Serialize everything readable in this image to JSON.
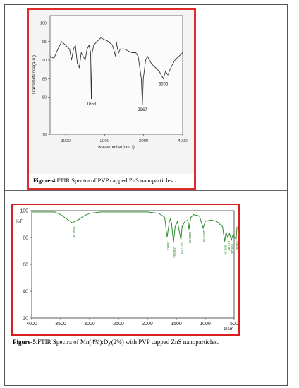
{
  "figure4": {
    "caption_label": "Figure-4",
    "caption_text": ".FTIR Spectra of PVP capped ZnS nanoparticles.",
    "chart_data": {
      "type": "line",
      "xlabel": "wavenumber(cm⁻¹)",
      "ylabel": "Transmittance(a.u.)",
      "xlim": [
        600,
        4000
      ],
      "ylim": [
        70,
        102
      ],
      "x_ticks": [
        "1000",
        "2000",
        "3000",
        "4000"
      ],
      "y_ticks": [
        "70",
        "80",
        "85",
        "90",
        "95",
        "100"
      ],
      "annotations": [
        {
          "label": "1658",
          "x": 1658,
          "y": 79.5
        },
        {
          "label": "2967",
          "x": 2967,
          "y": 78
        },
        {
          "label": "3505",
          "x": 3505,
          "y": 85
        }
      ],
      "series": [
        {
          "color": "#333333",
          "x": [
            600,
            700,
            800,
            900,
            1000,
            1100,
            1150,
            1200,
            1250,
            1300,
            1350,
            1400,
            1450,
            1500,
            1550,
            1600,
            1640,
            1658,
            1680,
            1720,
            1800,
            1900,
            2000,
            2100,
            2200,
            2280,
            2300,
            2330,
            2360,
            2400,
            2500,
            2600,
            2700,
            2800,
            2860,
            2900,
            2940,
            2967,
            2990,
            3050,
            3100,
            3200,
            3300,
            3400,
            3450,
            3505,
            3560,
            3620,
            3700,
            3800,
            3900,
            4000
          ],
          "y": [
            91,
            90.5,
            93,
            95,
            94,
            93,
            90,
            93,
            94,
            89,
            88,
            92,
            91,
            90,
            93,
            94,
            92,
            79.5,
            92,
            94,
            95,
            96,
            95.5,
            95,
            94,
            91,
            95,
            93,
            92,
            93,
            93,
            92.5,
            92,
            92,
            91,
            88,
            85,
            78,
            85,
            90,
            91,
            89,
            88,
            87,
            86,
            85,
            87,
            86,
            88,
            90,
            91,
            92
          ]
        }
      ]
    }
  },
  "figure5": {
    "caption_label": "Figure-5",
    "caption_text": ".FTIR Spectra of Mn(4%):Dy(2%) with PVP capped ZnS nanoparticles.",
    "chart_data": {
      "type": "line",
      "ylabel": "%T",
      "xlabel": "1/cm",
      "xlim": [
        4000,
        500
      ],
      "ylim": [
        20,
        100
      ],
      "x_ticks": [
        "4000",
        "3500",
        "3000",
        "2500",
        "2000",
        "1500",
        "1000",
        "500"
      ],
      "y_ticks": [
        "20",
        "40",
        "60",
        "80",
        "100"
      ],
      "peak_labels": [
        {
          "label": "3290.58",
          "x": 3290,
          "y": 90
        },
        {
          "label": "1660.77",
          "x": 1660,
          "y": 79
        },
        {
          "label": "1550.61",
          "x": 1550,
          "y": 75
        },
        {
          "label": "1419.89",
          "x": 1419,
          "y": 78
        },
        {
          "label": "1280.08",
          "x": 1280,
          "y": 86
        },
        {
          "label": "1035.54",
          "x": 1035,
          "y": 87
        },
        {
          "label": "663.59",
          "x": 663,
          "y": 76
        },
        {
          "label": "611.97",
          "x": 611,
          "y": 79
        },
        {
          "label": "549.33",
          "x": 549,
          "y": 77
        },
        {
          "label": "465.57",
          "x": 465,
          "y": 79
        }
      ],
      "series": [
        {
          "color": "#2a8a2a",
          "x": [
            4000,
            3800,
            3600,
            3500,
            3400,
            3300,
            3200,
            3100,
            3000,
            2800,
            2500,
            2200,
            2000,
            1800,
            1700,
            1660,
            1620,
            1600,
            1580,
            1550,
            1520,
            1480,
            1450,
            1419,
            1400,
            1350,
            1300,
            1280,
            1250,
            1200,
            1100,
            1035,
            1000,
            900,
            800,
            700,
            663,
            640,
            611,
            580,
            549,
            520,
            500,
            465,
            450
          ],
          "y": [
            99,
            99,
            99,
            97,
            94,
            91,
            93,
            96,
            98,
            99,
            99,
            99,
            99,
            98,
            95,
            80,
            92,
            94,
            90,
            76,
            88,
            92,
            85,
            78,
            88,
            92,
            93,
            86,
            95,
            97,
            96,
            87,
            92,
            93,
            92,
            88,
            77,
            84,
            80,
            83,
            78,
            82,
            80,
            79,
            88
          ]
        }
      ]
    }
  }
}
